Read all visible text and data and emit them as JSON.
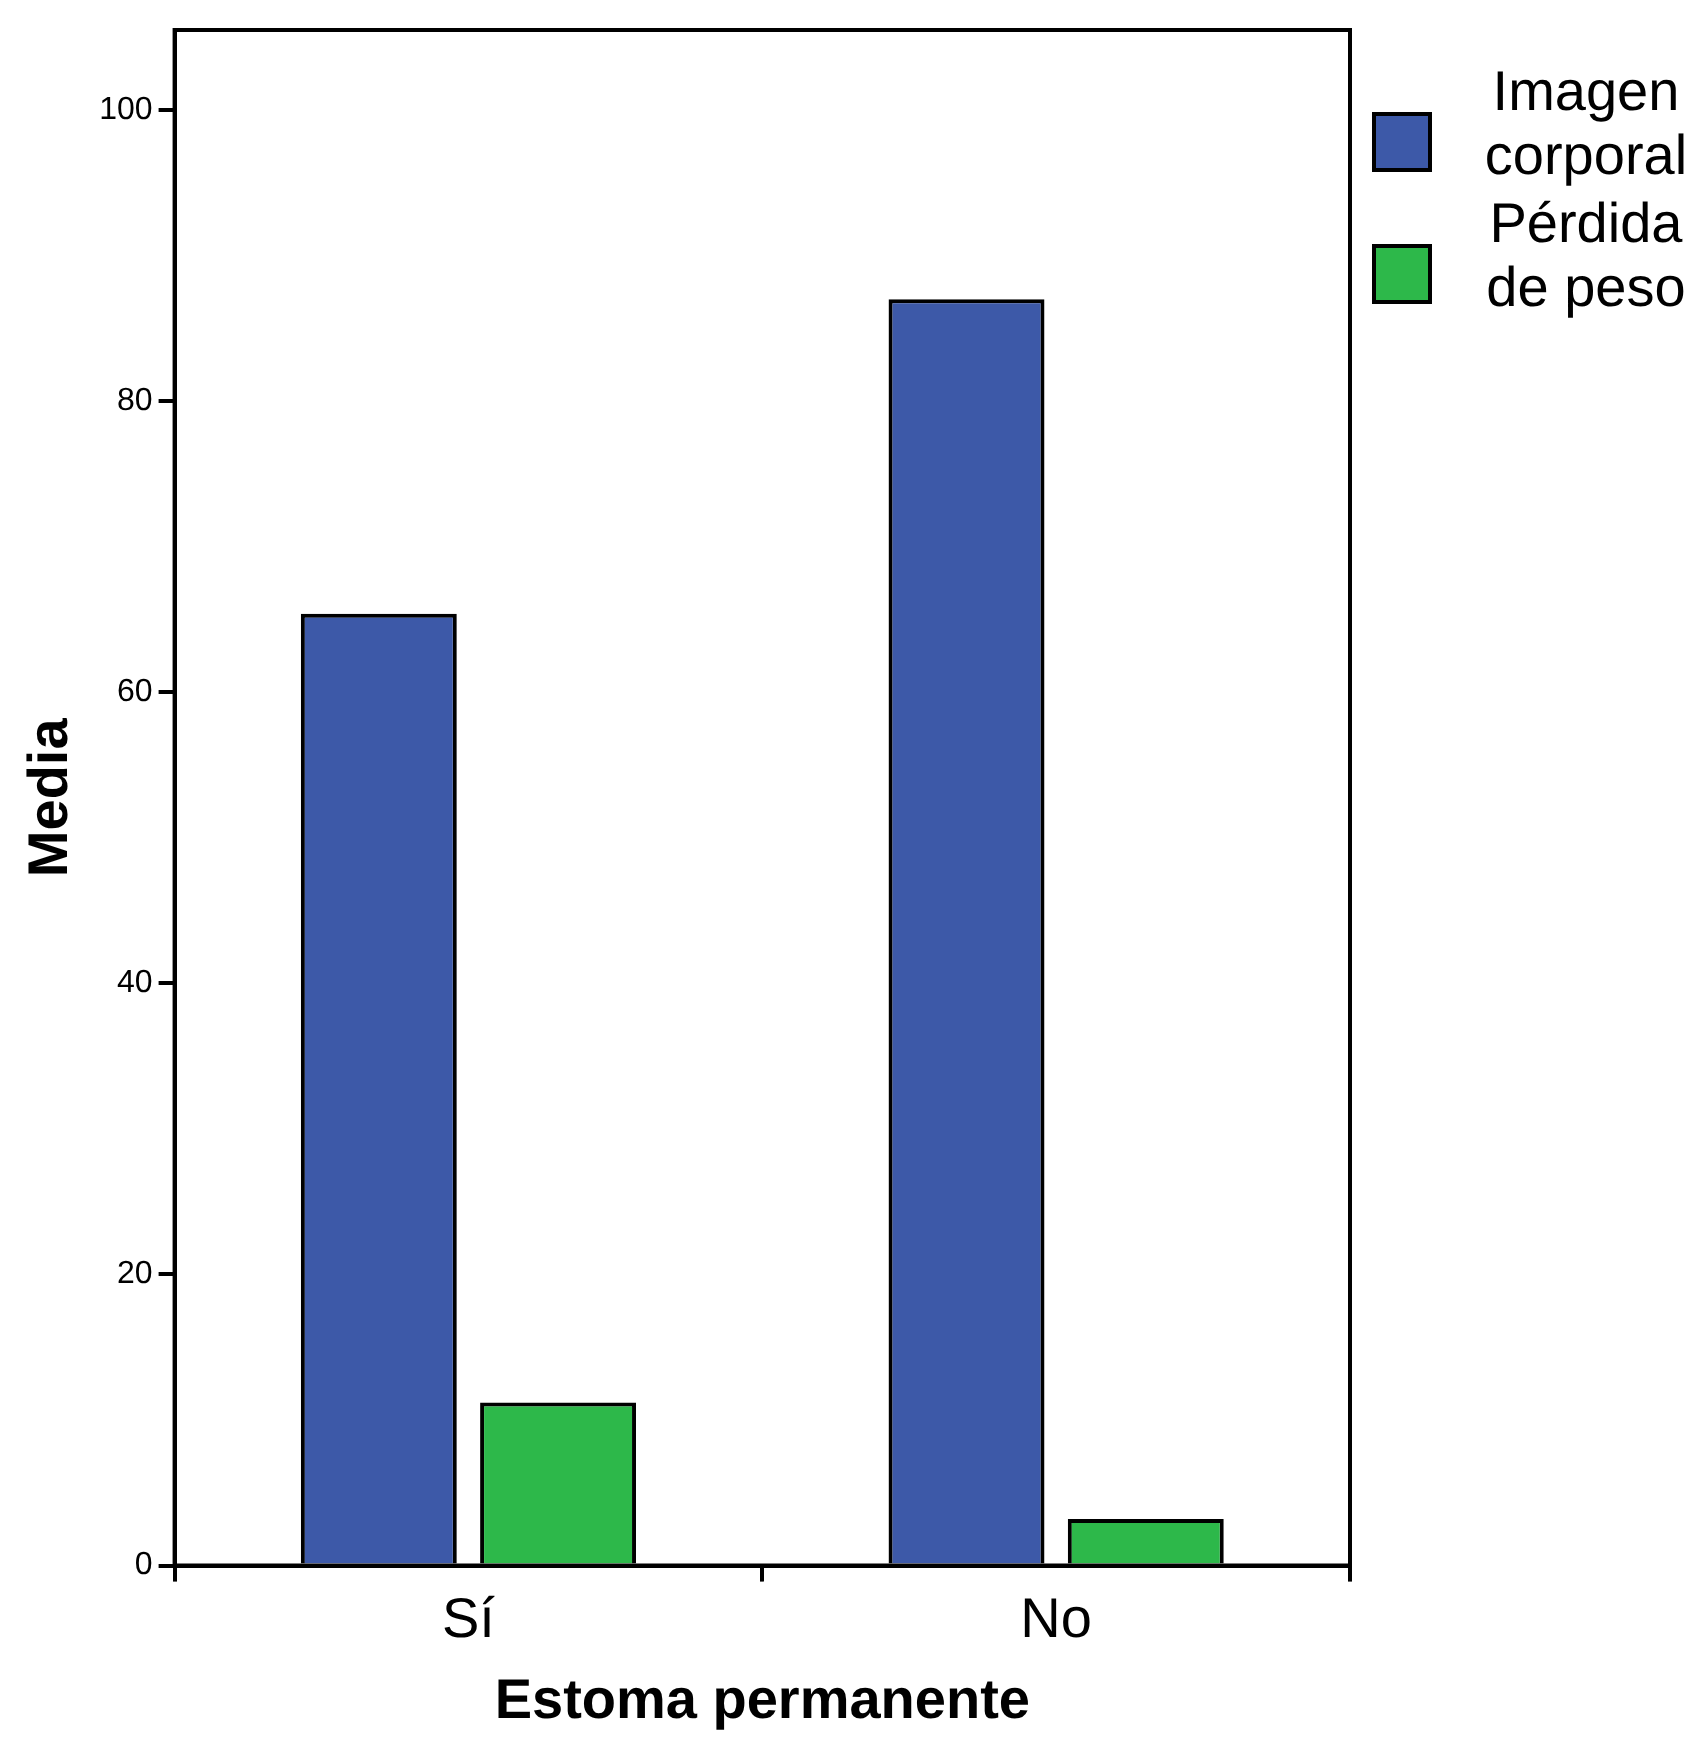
{
  "chart_data": {
    "type": "bar",
    "xlabel": "Estoma permanente",
    "ylabel": "Media",
    "categories": [
      "Sí",
      "No"
    ],
    "series": [
      {
        "name": "Imagen corporal",
        "color": "#3d59a8",
        "values": [
          65.4,
          87.0
        ]
      },
      {
        "name": "Pérdida de peso",
        "color": "#2db84a",
        "values": [
          11.2,
          3.2
        ]
      }
    ],
    "ylim": [
      0,
      105.5
    ],
    "yticks": [
      0,
      20,
      40,
      60,
      80,
      100
    ],
    "grid": false,
    "legend": "top right"
  }
}
